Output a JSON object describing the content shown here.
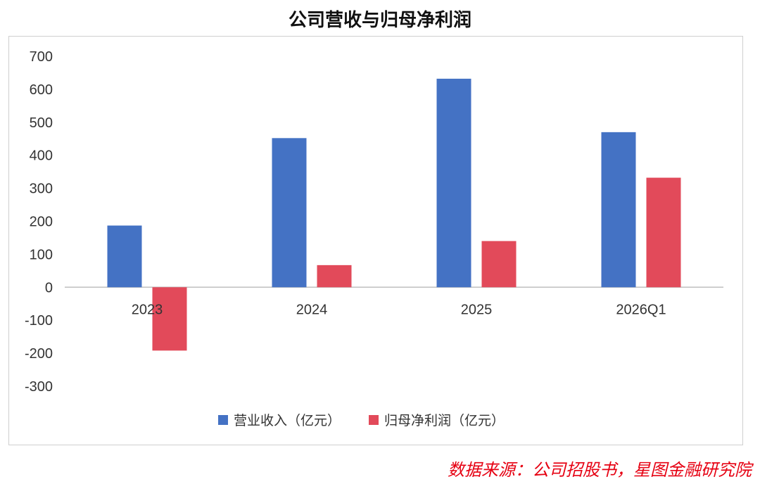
{
  "chart_data": {
    "type": "bar",
    "title": "公司营收与归母净利润",
    "categories": [
      "2023",
      "2024",
      "2025",
      "2026Q1"
    ],
    "series": [
      {
        "name": "营业收入（亿元）",
        "color": "#4472c4",
        "values": [
          187,
          452,
          632,
          470
        ]
      },
      {
        "name": "归母净利润（亿元）",
        "color": "#e24a5a",
        "values": [
          -192,
          67,
          140,
          332
        ]
      }
    ],
    "ylim": [
      -300,
      700
    ],
    "yticks": [
      700,
      600,
      500,
      400,
      300,
      200,
      100,
      0,
      -100,
      -200,
      -300
    ],
    "grid": false,
    "legend": "bottom"
  },
  "source_note": "数据来源：公司招股书，星图金融研究院"
}
